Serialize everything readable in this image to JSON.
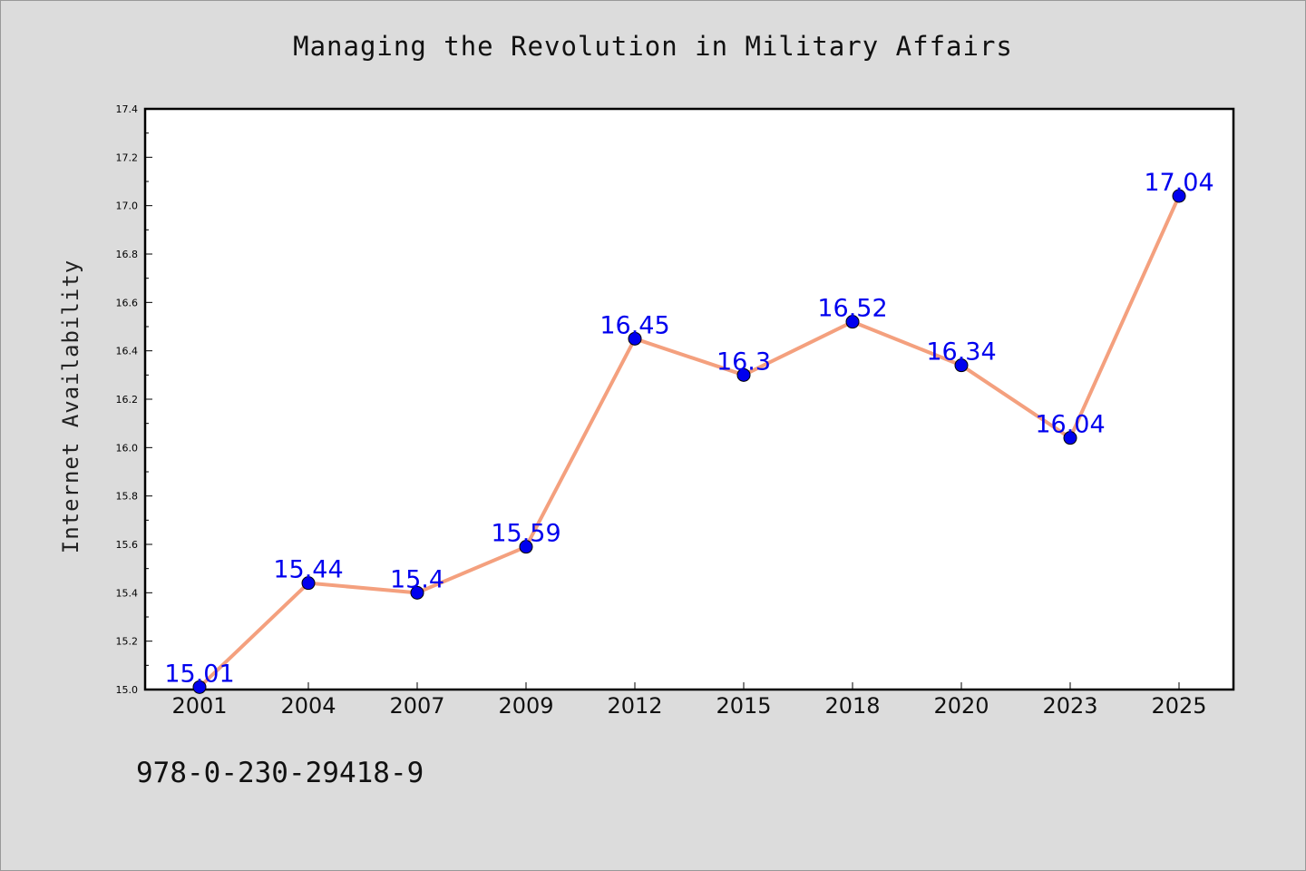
{
  "chart_data": {
    "type": "line",
    "title": "Managing the Revolution in Military Affairs",
    "xlabel": "",
    "ylabel": "Internet Availability",
    "categories": [
      "2001",
      "2004",
      "2007",
      "2009",
      "2012",
      "2015",
      "2018",
      "2020",
      "2023",
      "2025"
    ],
    "series": [
      {
        "values": [
          15.01,
          15.44,
          15.4,
          15.59,
          16.45,
          16.3,
          16.52,
          16.34,
          16.04,
          17.04
        ],
        "data_labels": [
          "15.01",
          "15.44",
          "15.4",
          "15.59",
          "16.45",
          "16.3",
          "16.52",
          "16.34",
          "16.04",
          "17.04"
        ]
      }
    ],
    "ylim": [
      15.0,
      17.4
    ],
    "yticks": [
      "15.0",
      "15.2",
      "15.4",
      "15.6",
      "15.8",
      "16.0",
      "16.2",
      "16.4",
      "16.6",
      "16.8",
      "17.0",
      "17.2",
      "17.4"
    ],
    "grid": false,
    "legend": "none",
    "line_color": "#f4a07e",
    "marker_color": "#0000ee",
    "label_color": "#0000ee"
  },
  "footer": {
    "isbn": "978-0-230-29418-9"
  }
}
